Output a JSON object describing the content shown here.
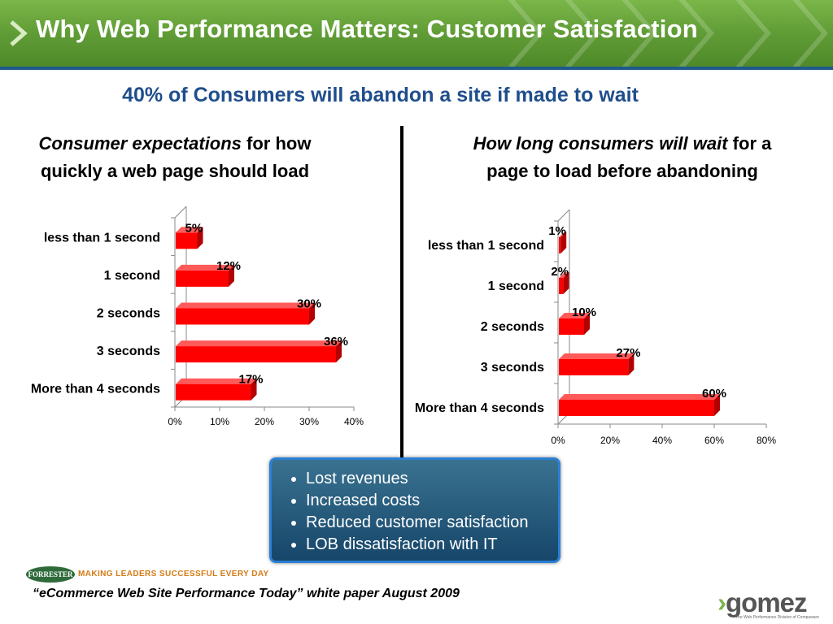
{
  "header": {
    "title": "Why Web Performance Matters: Customer Satisfaction"
  },
  "subtitle": "40% of Consumers will abandon a site if made to wait",
  "left_heading": {
    "italic": "Consumer expectations",
    "rest": " for how quickly a web page should load"
  },
  "right_heading": {
    "italic": "How long consumers will wait",
    "rest": " for a page to load before abandoning"
  },
  "chart_data": [
    {
      "type": "bar",
      "orientation": "horizontal",
      "categories": [
        "less than 1 second",
        "1 second",
        "2 seconds",
        "3 seconds",
        "More than 4 seconds"
      ],
      "values": [
        5,
        12,
        30,
        36,
        17
      ],
      "value_labels": [
        "5%",
        "12%",
        "30%",
        "36%",
        "17%"
      ],
      "xlim": [
        0,
        40
      ],
      "ticks": [
        "0%",
        "10%",
        "20%",
        "30%",
        "40%"
      ],
      "grid": false,
      "legend": "none"
    },
    {
      "type": "bar",
      "orientation": "horizontal",
      "categories": [
        "less than 1 second",
        "1 second",
        "2 seconds",
        "3 seconds",
        "More than 4 seconds"
      ],
      "values": [
        1,
        2,
        10,
        27,
        60
      ],
      "value_labels": [
        "1%",
        "2%",
        "10%",
        "27%",
        "60%"
      ],
      "xlim": [
        0,
        80
      ],
      "ticks": [
        "0%",
        "20%",
        "40%",
        "60%",
        "80%"
      ],
      "grid": false,
      "legend": "none"
    }
  ],
  "colors": {
    "bar": "#ff0000",
    "bar_dark": "#b30000",
    "bar_top": "#ff5a5a",
    "header_green": "#5e9a34",
    "subtitle_blue": "#1f4e8c",
    "callout_border": "#2a7fd4"
  },
  "callout": {
    "items": [
      "Lost revenues",
      "Increased costs",
      "Reduced customer satisfaction",
      "LOB dissatisfaction with IT"
    ]
  },
  "footer": {
    "forrester_logo": "FORRESTER",
    "forrester_tagline": "MAKING LEADERS SUCCESSFUL EVERY DAY",
    "citation": "“eCommerce Web Site Performance Today” white paper August 2009",
    "gomez_logo": "gomez",
    "gomez_tagline": "The Web Performance Division of Compuware"
  }
}
